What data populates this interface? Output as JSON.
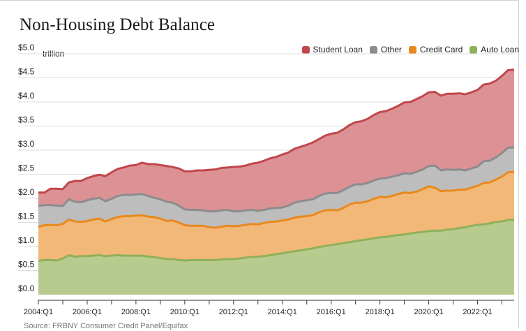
{
  "title": "Non-Housing Debt Balance",
  "unit_label": "trillion",
  "source": "Source: FRBNY Consumer Credit Panel/Equifax",
  "colors": {
    "student_loan_line": "#c0474b",
    "student_loan_fill": "#dc9294",
    "other_line": "#8c8c8c",
    "other_fill": "#bdbdbd",
    "credit_card_line": "#e8891e",
    "credit_card_fill": "#f2b878",
    "auto_loan_line": "#8fb05a",
    "auto_loan_fill": "#b8cb8f",
    "grid": "#dcdcdc",
    "axis_text": "#222222"
  },
  "chart_data": {
    "type": "area",
    "stacked": true,
    "title": "Non-Housing Debt Balance",
    "ylabel": "trillion",
    "ylim": [
      0,
      5.0
    ],
    "y_ticks": [
      "$0.0",
      "$0.5",
      "$1.0",
      "$1.5",
      "$2.0",
      "$2.5",
      "$3.0",
      "$3.5",
      "$4.0",
      "$4.5",
      "$5.0"
    ],
    "x_tick_labels": [
      "2004:Q1",
      "2006:Q1",
      "2008:Q1",
      "2010:Q1",
      "2012:Q1",
      "2014:Q1",
      "2016:Q1",
      "2018:Q1",
      "2020:Q1",
      "2022:Q1"
    ],
    "x_tick_quarters": [
      0,
      8,
      16,
      24,
      32,
      40,
      48,
      56,
      64,
      72
    ],
    "x_range_quarters": [
      0,
      78
    ],
    "grid": true,
    "legend": "top-right",
    "series": [
      {
        "key": "auto_loan",
        "name": "Auto Loan",
        "values": [
          0.7,
          0.72,
          0.72,
          0.71,
          0.75,
          0.82,
          0.79,
          0.8,
          0.8,
          0.81,
          0.82,
          0.8,
          0.81,
          0.82,
          0.81,
          0.81,
          0.81,
          0.81,
          0.79,
          0.78,
          0.76,
          0.74,
          0.74,
          0.72,
          0.71,
          0.72,
          0.72,
          0.72,
          0.72,
          0.72,
          0.73,
          0.74,
          0.74,
          0.75,
          0.77,
          0.78,
          0.79,
          0.8,
          0.82,
          0.84,
          0.86,
          0.88,
          0.9,
          0.92,
          0.94,
          0.96,
          0.99,
          1.01,
          1.03,
          1.05,
          1.07,
          1.09,
          1.11,
          1.13,
          1.15,
          1.17,
          1.19,
          1.2,
          1.22,
          1.24,
          1.25,
          1.27,
          1.29,
          1.3,
          1.32,
          1.33,
          1.33,
          1.35,
          1.36,
          1.38,
          1.4,
          1.43,
          1.45,
          1.46,
          1.48,
          1.51,
          1.52,
          1.55,
          1.55
        ]
      },
      {
        "key": "credit_card",
        "name": "Credit Card",
        "values": [
          0.71,
          0.72,
          0.73,
          0.73,
          0.72,
          0.74,
          0.73,
          0.71,
          0.73,
          0.75,
          0.76,
          0.72,
          0.76,
          0.79,
          0.82,
          0.82,
          0.83,
          0.84,
          0.83,
          0.83,
          0.82,
          0.79,
          0.8,
          0.78,
          0.73,
          0.71,
          0.71,
          0.71,
          0.68,
          0.67,
          0.68,
          0.69,
          0.68,
          0.68,
          0.68,
          0.69,
          0.67,
          0.69,
          0.69,
          0.68,
          0.68,
          0.68,
          0.7,
          0.7,
          0.69,
          0.69,
          0.72,
          0.74,
          0.73,
          0.7,
          0.73,
          0.78,
          0.8,
          0.78,
          0.79,
          0.82,
          0.84,
          0.82,
          0.83,
          0.85,
          0.87,
          0.84,
          0.85,
          0.89,
          0.93,
          0.89,
          0.82,
          0.81,
          0.8,
          0.8,
          0.78,
          0.79,
          0.81,
          0.86,
          0.85,
          0.88,
          0.93,
          0.99,
          1.0
        ]
      },
      {
        "key": "other",
        "name": "Other",
        "values": [
          0.43,
          0.42,
          0.41,
          0.41,
          0.37,
          0.42,
          0.41,
          0.41,
          0.43,
          0.43,
          0.43,
          0.42,
          0.42,
          0.44,
          0.44,
          0.44,
          0.44,
          0.44,
          0.43,
          0.4,
          0.4,
          0.4,
          0.37,
          0.35,
          0.33,
          0.33,
          0.33,
          0.32,
          0.33,
          0.34,
          0.34,
          0.33,
          0.31,
          0.3,
          0.3,
          0.29,
          0.28,
          0.27,
          0.28,
          0.28,
          0.27,
          0.29,
          0.31,
          0.32,
          0.33,
          0.33,
          0.34,
          0.35,
          0.35,
          0.36,
          0.37,
          0.37,
          0.38,
          0.38,
          0.38,
          0.38,
          0.38,
          0.4,
          0.4,
          0.39,
          0.4,
          0.4,
          0.41,
          0.41,
          0.42,
          0.46,
          0.43,
          0.44,
          0.43,
          0.42,
          0.4,
          0.4,
          0.4,
          0.45,
          0.45,
          0.46,
          0.49,
          0.51,
          0.51
        ]
      },
      {
        "key": "student_loan",
        "name": "Student Loan",
        "values": [
          0.28,
          0.26,
          0.34,
          0.35,
          0.35,
          0.35,
          0.43,
          0.44,
          0.46,
          0.47,
          0.48,
          0.52,
          0.55,
          0.56,
          0.57,
          0.61,
          0.61,
          0.65,
          0.66,
          0.7,
          0.71,
          0.74,
          0.74,
          0.77,
          0.79,
          0.8,
          0.82,
          0.83,
          0.86,
          0.87,
          0.88,
          0.88,
          0.92,
          0.93,
          0.93,
          0.96,
          1.0,
          1.02,
          1.04,
          1.06,
          1.1,
          1.1,
          1.12,
          1.13,
          1.15,
          1.18,
          1.18,
          1.2,
          1.23,
          1.25,
          1.26,
          1.28,
          1.29,
          1.31,
          1.33,
          1.36,
          1.38,
          1.39,
          1.41,
          1.44,
          1.47,
          1.49,
          1.51,
          1.52,
          1.53,
          1.53,
          1.55,
          1.57,
          1.58,
          1.58,
          1.58,
          1.58,
          1.59,
          1.59,
          1.6,
          1.59,
          1.6,
          1.61,
          1.61
        ]
      }
    ]
  }
}
